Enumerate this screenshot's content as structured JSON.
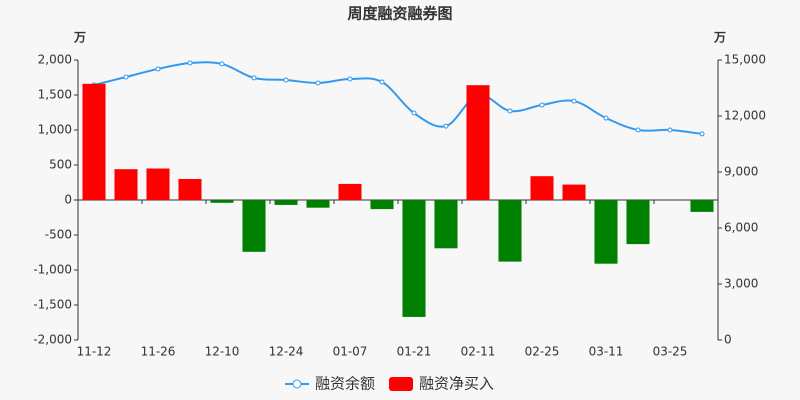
{
  "chart_data": {
    "type": "bar-line",
    "title": "周度融资融券图",
    "y_label": "万",
    "y2_label": "万",
    "categories": [
      "11-12",
      null,
      "11-26",
      null,
      "12-10",
      null,
      "12-24",
      null,
      "01-07",
      null,
      "01-21",
      null,
      "02-11",
      null,
      "02-25",
      null,
      "03-11",
      null,
      "03-25",
      null
    ],
    "series": [
      {
        "name": "融资余额",
        "type": "line",
        "axis": "y2",
        "color": "#3399ee",
        "values": [
          13660,
          14090,
          14520,
          14840,
          14790,
          14040,
          13930,
          13770,
          13980,
          13820,
          12160,
          11460,
          13130,
          12270,
          12590,
          12800,
          11890,
          11250,
          11250,
          11040
        ]
      },
      {
        "name": "融资净买入",
        "type": "bar",
        "color": "#ff0000",
        "negative_color": "#008000",
        "values": [
          1660,
          440,
          450,
          300,
          -40,
          -740,
          -70,
          -110,
          230,
          -130,
          -1670,
          -690,
          1640,
          -880,
          340,
          220,
          -910,
          -630,
          0,
          -170
        ]
      }
    ],
    "ylim": [
      -2000,
      2000
    ],
    "yticks": [
      {
        "value": -2000,
        "label": "-2,000"
      },
      {
        "value": -1500,
        "label": "-1,500"
      },
      {
        "value": -1000,
        "label": "-1,000"
      },
      -500,
      0,
      500,
      {
        "value": 1000,
        "label": "1,000"
      },
      {
        "value": 1500,
        "label": "1,500"
      },
      {
        "value": 2000,
        "label": "2,000"
      }
    ],
    "y2lim": [
      0,
      15000
    ],
    "y2ticks": [
      0,
      {
        "value": 3000,
        "label": "3,000"
      },
      {
        "value": 6000,
        "label": "6,000"
      },
      {
        "value": 9000,
        "label": "9,000"
      },
      {
        "value": 12000,
        "label": "12,000"
      },
      {
        "value": 15000,
        "label": "15,000"
      }
    ],
    "legend": "bottom"
  }
}
